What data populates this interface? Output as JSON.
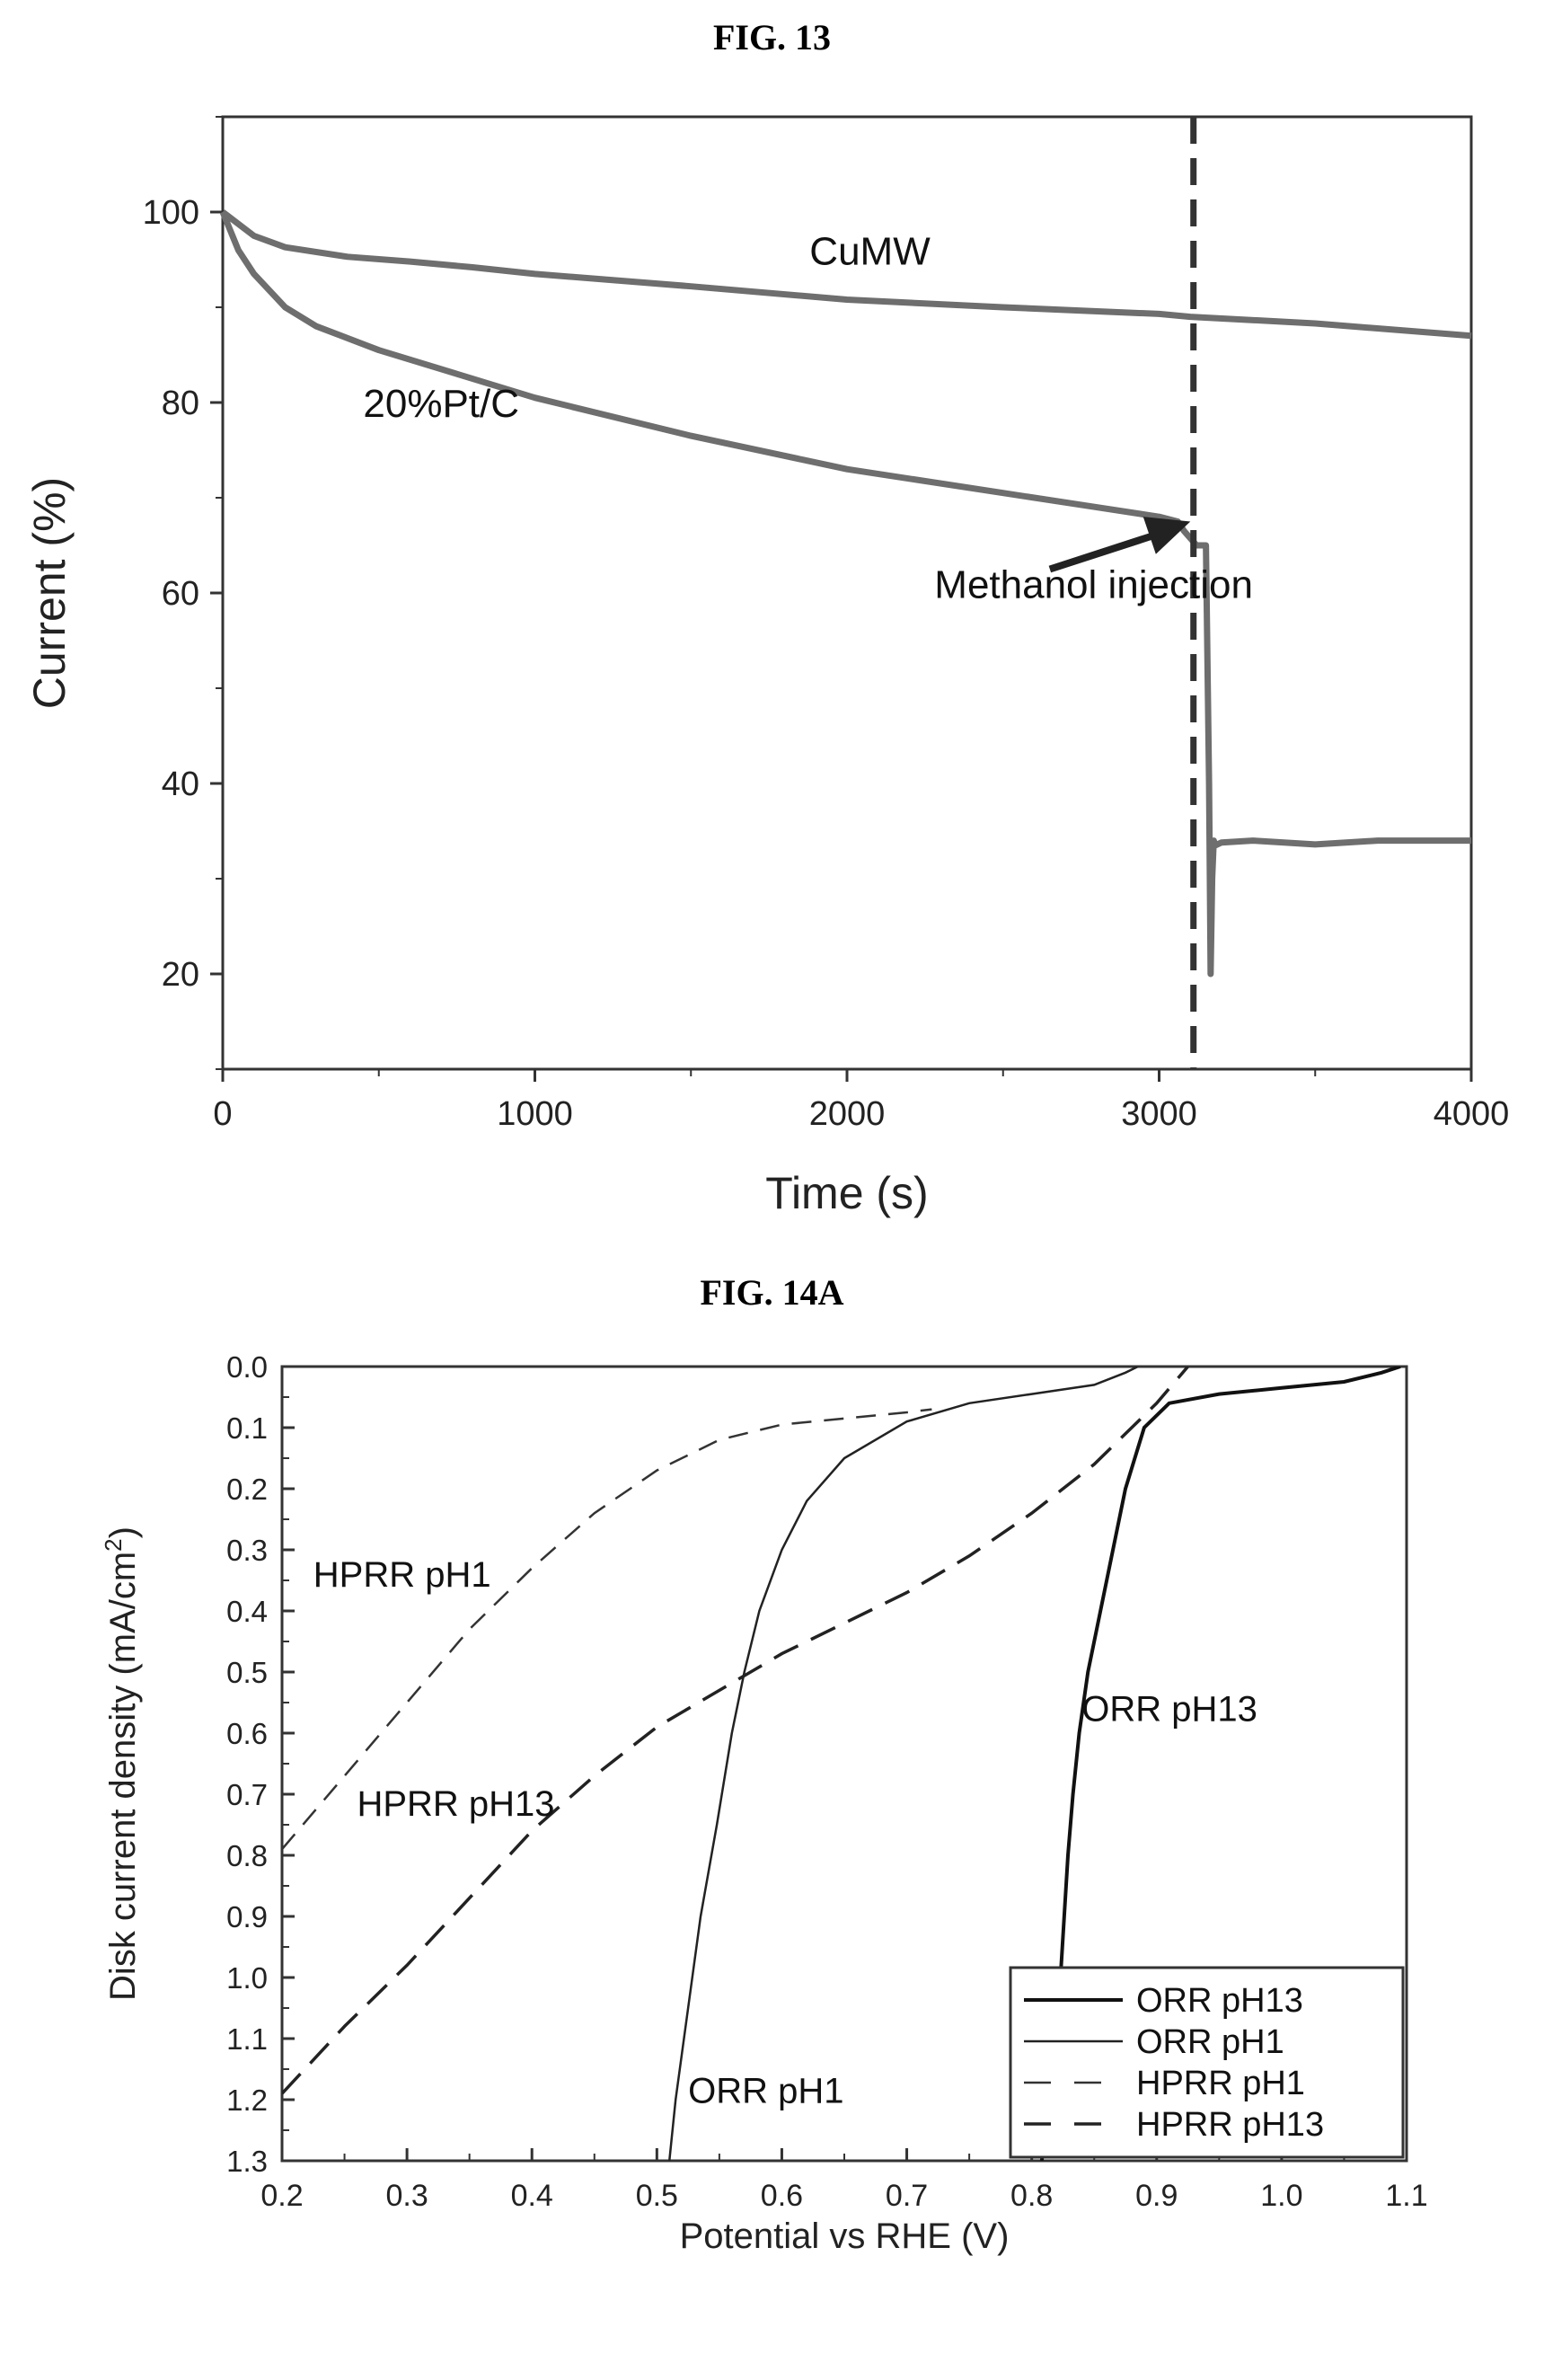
{
  "figure13": {
    "title": "FIG. 13"
  },
  "figure14a": {
    "title": "FIG. 14A"
  },
  "chart_data": [
    {
      "type": "line",
      "title": "FIG. 13",
      "xlabel": "Time (s)",
      "ylabel": "Current (%)",
      "xlim": [
        0,
        4000
      ],
      "ylim": [
        10,
        110
      ],
      "xticks": [
        0,
        1000,
        2000,
        3000,
        4000
      ],
      "yticks": [
        20,
        40,
        60,
        80,
        100
      ],
      "grid": false,
      "series": [
        {
          "name": "CuMW",
          "color": "#6e6e6e",
          "x": [
            0,
            100,
            200,
            400,
            600,
            800,
            1000,
            1500,
            2000,
            2500,
            3000,
            3100,
            3500,
            4000
          ],
          "y": [
            100,
            97.5,
            96.3,
            95.3,
            94.8,
            94.2,
            93.5,
            92.2,
            90.8,
            90.0,
            89.3,
            89.0,
            88.3,
            87.0
          ]
        },
        {
          "name": "20%Pt/C",
          "color": "#6e6e6e",
          "x": [
            0,
            50,
            100,
            200,
            300,
            500,
            750,
            1000,
            1500,
            2000,
            2500,
            2800,
            3000,
            3060,
            3080,
            3120,
            3150,
            3160,
            3165,
            3170,
            3175,
            3180,
            3200,
            3300,
            3500,
            3700,
            4000
          ],
          "y": [
            100,
            96.0,
            93.5,
            90.0,
            88.0,
            85.5,
            83.0,
            80.5,
            76.5,
            73.0,
            70.5,
            69.0,
            68.0,
            67.5,
            66.5,
            65.0,
            65.0,
            40.0,
            20.0,
            30.0,
            34.0,
            33.5,
            33.8,
            34.0,
            33.6,
            34.0,
            34.0
          ]
        }
      ],
      "annotations": [
        {
          "text": "CuMW",
          "x": 1880,
          "y": 94.5
        },
        {
          "text": "20%Pt/C",
          "x": 450,
          "y": 78.5
        },
        {
          "text": "Methanol injection",
          "x": 2280,
          "y": 59.5
        }
      ],
      "vline": {
        "x": 3110,
        "style": "dashed"
      },
      "arrow": {
        "from": [
          2650,
          62.5
        ],
        "to": [
          3100,
          67.5
        ]
      }
    },
    {
      "type": "line",
      "title": "FIG. 14A",
      "xlabel": "Potential vs RHE (V)",
      "ylabel": "Disk current density (mA/cm",
      "ylabel_sup": "2",
      "ylabel_end": ")",
      "xlim": [
        0.2,
        1.1
      ],
      "ylim": [
        0.0,
        1.3
      ],
      "y_inverted": true,
      "xticks": [
        "0.2",
        "0.3",
        "0.4",
        "0.5",
        "0.6",
        "0.7",
        "0.8",
        "0.9",
        "1.0",
        "1.1"
      ],
      "yticks": [
        "0.0",
        "0.1",
        "0.2",
        "0.3",
        "0.4",
        "0.5",
        "0.6",
        "0.7",
        "0.8",
        "0.9",
        "1.0",
        "1.1",
        "1.2",
        "1.3"
      ],
      "grid": false,
      "legend_position": "bottom-right",
      "series": [
        {
          "name": "ORR pH13",
          "style": "solid-thick",
          "x": [
            0.808,
            0.815,
            0.82,
            0.823,
            0.826,
            0.829,
            0.833,
            0.838,
            0.845,
            0.855,
            0.865,
            0.875,
            0.89,
            0.91,
            0.95,
            1.0,
            1.05,
            1.08,
            1.095
          ],
          "y": [
            1.3,
            1.2,
            1.1,
            1.0,
            0.9,
            0.8,
            0.7,
            0.6,
            0.5,
            0.4,
            0.3,
            0.2,
            0.1,
            0.06,
            0.045,
            0.035,
            0.025,
            0.01,
            0.0
          ]
        },
        {
          "name": "ORR pH1",
          "style": "solid-thin",
          "x": [
            0.51,
            0.515,
            0.525,
            0.535,
            0.548,
            0.56,
            0.57,
            0.582,
            0.6,
            0.62,
            0.65,
            0.7,
            0.75,
            0.8,
            0.85,
            0.875,
            0.885
          ],
          "y": [
            1.3,
            1.2,
            1.05,
            0.9,
            0.75,
            0.6,
            0.5,
            0.4,
            0.3,
            0.22,
            0.15,
            0.09,
            0.06,
            0.045,
            0.03,
            0.01,
            0.0
          ]
        },
        {
          "name": "HPRR pH1",
          "style": "dashed-thin",
          "x": [
            0.2,
            0.25,
            0.3,
            0.35,
            0.4,
            0.45,
            0.5,
            0.55,
            0.6,
            0.65,
            0.7,
            0.72
          ],
          "y": [
            0.79,
            0.67,
            0.55,
            0.43,
            0.33,
            0.24,
            0.17,
            0.12,
            0.095,
            0.085,
            0.075,
            0.07
          ]
        },
        {
          "name": "HPRR pH13",
          "style": "dashed-thick",
          "x": [
            0.2,
            0.25,
            0.3,
            0.35,
            0.4,
            0.45,
            0.5,
            0.55,
            0.6,
            0.65,
            0.7,
            0.75,
            0.8,
            0.85,
            0.9,
            0.925
          ],
          "y": [
            1.19,
            1.08,
            0.98,
            0.87,
            0.76,
            0.67,
            0.59,
            0.53,
            0.47,
            0.42,
            0.37,
            0.31,
            0.24,
            0.16,
            0.06,
            0.0
          ]
        }
      ],
      "annotations": [
        {
          "text": "HPRR pH1",
          "x": 0.225,
          "y": 0.36
        },
        {
          "text": "HPRR pH13",
          "x": 0.26,
          "y": 0.735
        },
        {
          "text": "ORR pH13",
          "x": 0.84,
          "y": 0.58
        },
        {
          "text": "ORR pH1",
          "x": 0.525,
          "y": 1.205
        }
      ]
    }
  ]
}
